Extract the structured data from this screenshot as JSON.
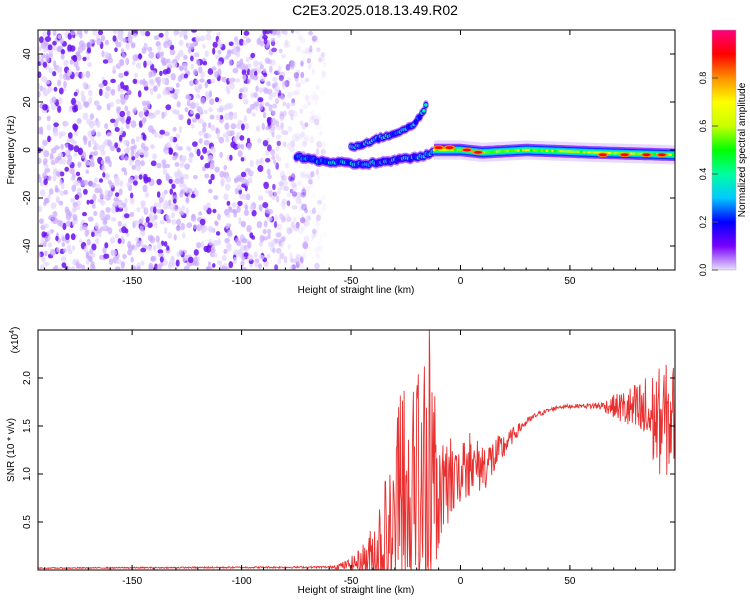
{
  "title": "C2E3.2025.018.13.49.R02",
  "chart_data": [
    {
      "type": "heatmap",
      "name": "spectrogram",
      "xlabel": "Height of straight line (km)",
      "ylabel": "Frequency (Hz)",
      "xlim": [
        -193,
        98
      ],
      "ylim": [
        -50,
        50
      ],
      "xticks": [
        -150,
        -100,
        -50,
        0,
        50
      ],
      "xtick_labels": [
        "-150",
        "-100",
        "-50",
        "0",
        "50"
      ],
      "yticks": [
        -40,
        -20,
        0,
        20,
        40
      ],
      "ytick_labels": [
        "-40",
        "-20",
        "0",
        "20",
        "40"
      ],
      "colorbar": {
        "label": "Normalized spectral amplitude",
        "range": [
          0,
          1
        ],
        "ticks": [
          0.0,
          0.2,
          0.4,
          0.6,
          0.8
        ],
        "tick_labels": [
          "0.0",
          "0.2",
          "0.4",
          "0.6",
          "0.8"
        ],
        "stops": [
          "#e8e0ff",
          "#7a00ff",
          "#0000ff",
          "#00c8ff",
          "#00ffa0",
          "#00ff00",
          "#c8ff00",
          "#ffff00",
          "#ff9000",
          "#ff0000",
          "#ff0080"
        ]
      },
      "features": [
        {
          "name": "noise-region",
          "x_range": [
            -193,
            -68
          ],
          "freq_range": [
            -50,
            50
          ],
          "amplitude": 0.12
        },
        {
          "name": "upper-branch",
          "points": [
            [
              -50,
              1
            ],
            [
              -40,
              4
            ],
            [
              -30,
              7
            ],
            [
              -22,
              10
            ],
            [
              -17,
              16
            ],
            [
              -15,
              20
            ]
          ],
          "amplitude": 0.35
        },
        {
          "name": "lower-branch",
          "points": [
            [
              -75,
              -3
            ],
            [
              -60,
              -5
            ],
            [
              -45,
              -6
            ],
            [
              -35,
              -5
            ],
            [
              -20,
              -3
            ],
            [
              -12,
              -1
            ]
          ],
          "amplitude": 0.3
        },
        {
          "name": "main-line",
          "points": [
            [
              -12,
              0
            ],
            [
              0,
              0
            ],
            [
              10,
              -1
            ],
            [
              30,
              0
            ],
            [
              60,
              -1
            ],
            [
              98,
              -2
            ]
          ],
          "amplitude": 0.5
        },
        {
          "name": "red-spots",
          "points": [
            [
              -10,
              1
            ],
            [
              -5,
              1
            ],
            [
              3,
              0
            ],
            [
              8,
              -1
            ],
            [
              65,
              -2
            ],
            [
              75,
              -2
            ],
            [
              85,
              -2
            ],
            [
              92,
              -2
            ]
          ],
          "amplitude": 0.95
        }
      ]
    },
    {
      "type": "line",
      "name": "snr",
      "xlabel": "Height of straight line (km)",
      "ylabel": "SNR (10 * v/v)",
      "multiplier_label": "(x10",
      "multiplier_exponent": "4",
      "xlim": [
        -193,
        98
      ],
      "ylim": [
        0,
        2.5
      ],
      "xticks": [
        -150,
        -100,
        -50,
        0,
        50
      ],
      "xtick_labels": [
        "-150",
        "-100",
        "-50",
        "0",
        "50"
      ],
      "yticks": [
        0.5,
        1.0,
        1.5,
        2.0
      ],
      "ytick_labels": [
        "0.5",
        "1.0",
        "1.5",
        "2.0"
      ],
      "color": "#e83030",
      "envelope_x": [
        -193,
        -60,
        -52,
        -47,
        -42,
        -38,
        -35,
        -30,
        -27,
        -22,
        -18,
        -15,
        -12,
        -8,
        -5,
        0,
        3,
        8,
        12,
        17,
        22,
        28,
        35,
        45,
        55,
        65,
        72,
        80,
        85,
        90,
        94,
        98
      ],
      "envelope_base": [
        0.02,
        0.03,
        0.05,
        0.08,
        0.12,
        0.2,
        0.3,
        0.35,
        0.4,
        0.45,
        0.5,
        0.6,
        0.7,
        0.78,
        0.85,
        0.95,
        1.0,
        1.08,
        1.1,
        1.2,
        1.35,
        1.5,
        1.62,
        1.7,
        1.71,
        1.71,
        1.7,
        1.65,
        1.6,
        1.55,
        1.55,
        1.6
      ],
      "envelope_amp": [
        0.005,
        0.01,
        0.05,
        0.12,
        0.25,
        0.5,
        0.7,
        0.8,
        0.9,
        0.85,
        0.9,
        1.2,
        0.7,
        0.45,
        0.35,
        0.25,
        0.25,
        0.3,
        0.25,
        0.2,
        0.1,
        0.05,
        0.03,
        0.02,
        0.02,
        0.05,
        0.15,
        0.3,
        0.45,
        0.55,
        0.6,
        0.6
      ]
    }
  ]
}
